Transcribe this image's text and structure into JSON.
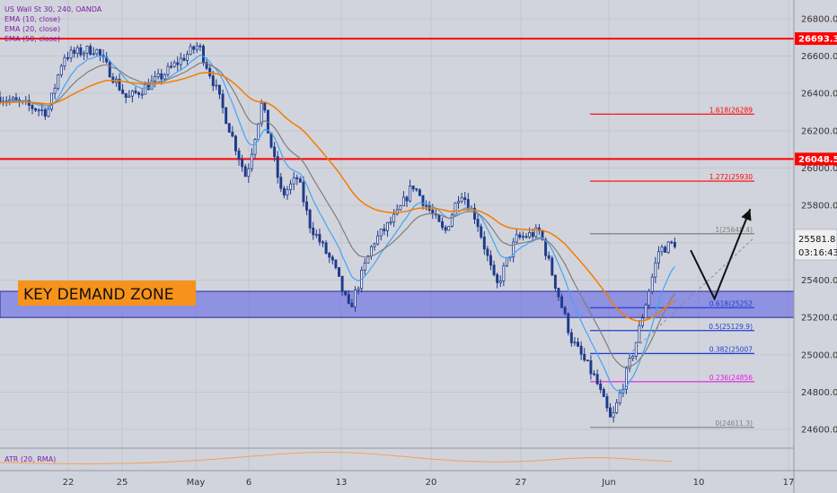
{
  "legend": {
    "symbol": "US Wall St 30, 240, OANDA",
    "ema10": "EMA (10, close)",
    "ema20": "EMA (20, close)",
    "ema50": "EMA (50, close)"
  },
  "atr_label": "ATR (20, RMA)",
  "zone_label": "KEY DEMAND ZONE",
  "countdown": "03:16:43",
  "colors": {
    "background": "#d1d4dc",
    "candle": "#1e3a8a",
    "ema10": "#42a5f5",
    "ema20": "#7e7e7e",
    "ema50": "#f57c00",
    "key_level": "#ff0000",
    "zone_fill": "#5a5ae6",
    "atr": "#f5a05a",
    "fib_red": "#ff0000",
    "fib_blue": "#1f3bd1",
    "fib_magenta": "#e020e0",
    "fib_gray": "#808080"
  },
  "chart_data": {
    "type": "candlestick",
    "timeframe": "240",
    "price_axis": {
      "min": 24500,
      "max": 26900,
      "tick_labels": [
        "26800.0",
        "26600.0",
        "26400.0",
        "26200.0",
        "26000.0",
        "25800.0",
        "25600.0",
        "25400.0",
        "25200.0",
        "25000.0",
        "24800.0",
        "24600.0"
      ]
    },
    "time_axis": {
      "tick_labels": [
        "22",
        "25",
        "May",
        "6",
        "13",
        "20",
        "27",
        "Jun",
        "10",
        "17"
      ]
    },
    "price_path": [
      {
        "t": 0.0,
        "p": 26380
      },
      {
        "t": 0.06,
        "p": 26300
      },
      {
        "t": 0.08,
        "p": 26600
      },
      {
        "t": 0.12,
        "p": 26640
      },
      {
        "t": 0.16,
        "p": 26370
      },
      {
        "t": 0.2,
        "p": 26480
      },
      {
        "t": 0.25,
        "p": 26660
      },
      {
        "t": 0.27,
        "p": 26450
      },
      {
        "t": 0.31,
        "p": 25950
      },
      {
        "t": 0.33,
        "p": 26350
      },
      {
        "t": 0.355,
        "p": 25850
      },
      {
        "t": 0.375,
        "p": 25950
      },
      {
        "t": 0.39,
        "p": 25700
      },
      {
        "t": 0.42,
        "p": 25480
      },
      {
        "t": 0.44,
        "p": 25240
      },
      {
        "t": 0.47,
        "p": 25600
      },
      {
        "t": 0.5,
        "p": 25750
      },
      {
        "t": 0.52,
        "p": 25910
      },
      {
        "t": 0.56,
        "p": 25650
      },
      {
        "t": 0.58,
        "p": 25880
      },
      {
        "t": 0.6,
        "p": 25730
      },
      {
        "t": 0.625,
        "p": 25360
      },
      {
        "t": 0.65,
        "p": 25620
      },
      {
        "t": 0.68,
        "p": 25660
      },
      {
        "t": 0.72,
        "p": 25080
      },
      {
        "t": 0.75,
        "p": 24870
      },
      {
        "t": 0.77,
        "p": 24640
      },
      {
        "t": 0.8,
        "p": 25050
      },
      {
        "t": 0.83,
        "p": 25560
      },
      {
        "t": 0.85,
        "p": 25600
      }
    ],
    "ema_series": [
      {
        "name": "EMA (10, close)",
        "period": 10
      },
      {
        "name": "EMA (20, close)",
        "period": 20
      },
      {
        "name": "EMA (50, close)",
        "period": 50
      }
    ],
    "key_levels": [
      {
        "label": "26693.3",
        "value": 26693.3
      },
      {
        "label": "26048.5",
        "value": 26048.5
      }
    ],
    "last_price": {
      "label": "25581.8",
      "value": 25581.8
    },
    "demand_zone": {
      "label": "KEY DEMAND ZONE",
      "top": 25340,
      "bottom": 25200
    },
    "fib_levels": [
      {
        "label": "1.618(26289",
        "value": 26289,
        "color": "red"
      },
      {
        "label": "1.272(25930",
        "value": 25930,
        "color": "red"
      },
      {
        "label": "1(25648.4)",
        "value": 25648.4,
        "color": "gray"
      },
      {
        "label": "0.618(25252",
        "value": 25252,
        "color": "blue"
      },
      {
        "label": "0.5(25129.9)",
        "value": 25129.9,
        "color": "blue"
      },
      {
        "label": "0.382(25007",
        "value": 25007,
        "color": "blue"
      },
      {
        "label": "0.236(24856",
        "value": 24856,
        "color": "magenta"
      },
      {
        "label": "0(24611.3)",
        "value": 24611.3,
        "color": "gray"
      }
    ],
    "projection_arrow": [
      {
        "t": 0.87,
        "p": 25560
      },
      {
        "t": 0.9,
        "p": 25300
      },
      {
        "t": 0.945,
        "p": 25780
      }
    ]
  }
}
